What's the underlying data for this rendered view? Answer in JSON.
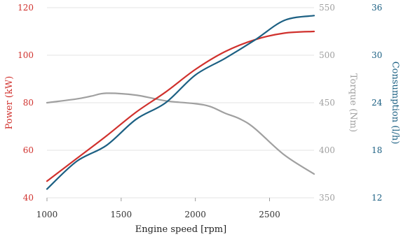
{
  "chart_data": {
    "type": "line",
    "xlabel": "Engine speed [rpm]",
    "xlim": [
      1000,
      2800
    ],
    "x_ticks": [
      1000,
      1500,
      2000,
      2500
    ],
    "grid": "horizontal",
    "axes": [
      {
        "label": "Power (kW)",
        "side": "left",
        "range": [
          40,
          120
        ],
        "ticks": [
          40,
          60,
          80,
          100,
          120
        ],
        "color": "#d0312d"
      },
      {
        "label": "Torque (Nm)",
        "side": "right",
        "range": [
          350,
          550
        ],
        "ticks": [
          350,
          400,
          450,
          500,
          550
        ],
        "color": "#a0a0a0"
      },
      {
        "label": "Consumption (l/h)",
        "side": "right",
        "range": [
          12,
          36
        ],
        "ticks": [
          12,
          18,
          24,
          30,
          36
        ],
        "color": "#1c6083"
      }
    ],
    "series": [
      {
        "axis": 0,
        "color": "#d0312d",
        "points": [
          [
            1000,
            47
          ],
          [
            1200,
            56.5
          ],
          [
            1400,
            66
          ],
          [
            1600,
            76
          ],
          [
            1800,
            84.5
          ],
          [
            2000,
            94
          ],
          [
            2200,
            101.5
          ],
          [
            2400,
            106.5
          ],
          [
            2600,
            109.3
          ],
          [
            2800,
            110
          ]
        ]
      },
      {
        "axis": 1,
        "color": "#a0a0a0",
        "points": [
          [
            1000,
            450
          ],
          [
            1200,
            454
          ],
          [
            1300,
            457
          ],
          [
            1400,
            460
          ],
          [
            1600,
            458
          ],
          [
            1800,
            452
          ],
          [
            2000,
            449
          ],
          [
            2100,
            446
          ],
          [
            2200,
            439
          ],
          [
            2300,
            433
          ],
          [
            2400,
            423
          ],
          [
            2600,
            395
          ],
          [
            2800,
            375
          ]
        ]
      },
      {
        "axis": 2,
        "color": "#1c6083",
        "points": [
          [
            1000,
            13.1
          ],
          [
            1200,
            16.6
          ],
          [
            1400,
            18.6
          ],
          [
            1600,
            21.9
          ],
          [
            1800,
            24.0
          ],
          [
            2000,
            27.5
          ],
          [
            2200,
            29.6
          ],
          [
            2400,
            31.9
          ],
          [
            2600,
            34.4
          ],
          [
            2800,
            35.0
          ]
        ]
      }
    ]
  }
}
